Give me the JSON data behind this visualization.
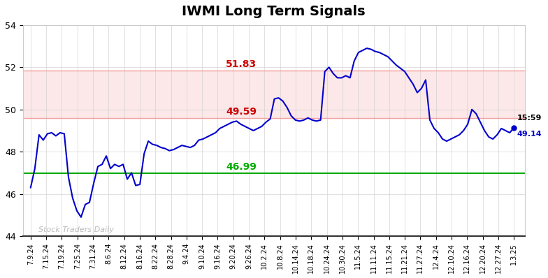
{
  "title": "IWMI Long Term Signals",
  "ylim": [
    44,
    54
  ],
  "yticks": [
    44,
    46,
    48,
    50,
    52,
    54
  ],
  "upper_red_line": 51.83,
  "lower_red_line": 49.59,
  "green_line": 46.99,
  "upper_red_label": "51.83",
  "lower_red_label": "49.59",
  "green_label": "46.99",
  "last_time": "15:59",
  "last_value": "49.14",
  "watermark": "Stock Traders Daily",
  "line_color": "#0000cc",
  "red_line_color": "#cc0000",
  "red_line_draw_color": "#f5a0a0",
  "green_line_color": "#00aa00",
  "red_band_color": "#fce8e8",
  "last_value_color": "#0000cc",
  "last_time_color": "#000000",
  "x_labels": [
    "7.9.24",
    "7.15.24",
    "7.19.24",
    "7.25.24",
    "7.31.24",
    "8.6.24",
    "8.12.24",
    "8.16.24",
    "8.22.24",
    "8.28.24",
    "9.4.24",
    "9.10.24",
    "9.16.24",
    "9.20.24",
    "9.26.24",
    "10.2.24",
    "10.8.24",
    "10.14.24",
    "10.18.24",
    "10.24.24",
    "10.30.24",
    "11.5.24",
    "11.11.24",
    "11.15.24",
    "11.21.24",
    "11.27.24",
    "12.4.24",
    "12.10.24",
    "12.16.24",
    "12.20.24",
    "12.27.24",
    "1.3.25"
  ],
  "prices": [
    46.3,
    47.2,
    48.8,
    48.55,
    48.85,
    48.9,
    48.75,
    48.9,
    48.85,
    46.8,
    45.8,
    45.2,
    44.9,
    45.5,
    45.6,
    46.5,
    47.3,
    47.4,
    47.8,
    47.2,
    47.4,
    47.3,
    47.4,
    46.7,
    47.0,
    46.4,
    46.45,
    47.9,
    48.5,
    48.35,
    48.3,
    48.2,
    48.15,
    48.05,
    48.1,
    48.2,
    48.3,
    48.25,
    48.2,
    48.3,
    48.55,
    48.6,
    48.7,
    48.8,
    48.9,
    49.1,
    49.2,
    49.3,
    49.4,
    49.45,
    49.3,
    49.2,
    49.1,
    49.0,
    49.1,
    49.2,
    49.4,
    49.55,
    50.5,
    50.55,
    50.4,
    50.1,
    49.7,
    49.5,
    49.45,
    49.5,
    49.6,
    49.5,
    49.45,
    49.5,
    51.8,
    52.0,
    51.7,
    51.5,
    51.5,
    51.6,
    51.5,
    52.3,
    52.7,
    52.8,
    52.9,
    52.85,
    52.75,
    52.7,
    52.6,
    52.5,
    52.3,
    52.1,
    51.95,
    51.8,
    51.5,
    51.2,
    50.8,
    51.0,
    51.4,
    49.5,
    49.1,
    48.9,
    48.6,
    48.5,
    48.6,
    48.7,
    48.8,
    49.0,
    49.3,
    50.0,
    49.8,
    49.4,
    49.0,
    48.7,
    48.6,
    48.8,
    49.1,
    49.0,
    48.9,
    49.14
  ]
}
